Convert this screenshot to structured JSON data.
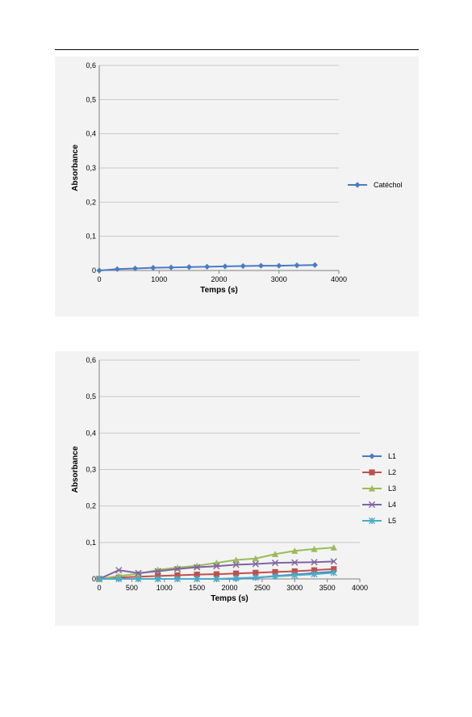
{
  "colors": {
    "L1": "#4a7bc4",
    "L2": "#c0504d",
    "L3": "#9bbb59",
    "L4": "#8064a2",
    "L5": "#4bacc6",
    "catechol": "#4a7bc4",
    "grid": "#c8c8c8",
    "axis": "#808080"
  },
  "chart_data": [
    {
      "type": "line",
      "title": "",
      "xlabel": "Temps (s)",
      "ylabel": "Absorbance",
      "xlim": [
        0,
        4000
      ],
      "ylim": [
        0,
        0.6
      ],
      "xticks": [
        0,
        1000,
        2000,
        3000,
        4000
      ],
      "xtick_labels": [
        "0",
        "1000",
        "2000",
        "3000",
        "4000"
      ],
      "yticks": [
        0,
        0.1,
        0.2,
        0.3,
        0.4,
        0.5,
        0.6
      ],
      "ytick_labels": [
        "0",
        "0,1",
        "0,2",
        "0,3",
        "0,4",
        "0,5",
        "0,6"
      ],
      "grid": true,
      "legend_position": "right",
      "x": [
        0,
        300,
        600,
        900,
        1200,
        1500,
        1800,
        2100,
        2400,
        2700,
        3000,
        3300,
        3600
      ],
      "series": [
        {
          "name": "Catéchol",
          "marker": "diamond",
          "color": "#4a7bc4",
          "values": [
            0.0,
            0.004,
            0.006,
            0.008,
            0.009,
            0.01,
            0.011,
            0.012,
            0.013,
            0.014,
            0.014,
            0.015,
            0.016
          ]
        }
      ]
    },
    {
      "type": "line",
      "title": "",
      "xlabel": "Temps (s)",
      "ylabel": "Absorbance",
      "xlim": [
        0,
        4000
      ],
      "ylim": [
        0,
        0.6
      ],
      "xticks": [
        0,
        500,
        1000,
        1500,
        2000,
        2500,
        3000,
        3500,
        4000
      ],
      "xtick_labels": [
        "0",
        "500",
        "1000",
        "1500",
        "2000",
        "2500",
        "3000",
        "3500",
        "4000"
      ],
      "yticks": [
        0,
        0.1,
        0.2,
        0.3,
        0.4,
        0.5,
        0.6
      ],
      "ytick_labels": [
        "0",
        "0,1",
        "0,2",
        "0,3",
        "0,4",
        "0,5",
        "0,6"
      ],
      "grid": true,
      "legend_position": "right",
      "x": [
        0,
        300,
        600,
        900,
        1200,
        1500,
        1800,
        2100,
        2400,
        2700,
        3000,
        3300,
        3600
      ],
      "series": [
        {
          "name": "L1",
          "marker": "diamond",
          "color": "#4a7bc4",
          "values": [
            0.0,
            0.0,
            0.0,
            0.0,
            0.0,
            0.0,
            0.0,
            0.0,
            0.003,
            0.008,
            0.012,
            0.016,
            0.02
          ]
        },
        {
          "name": "L2",
          "marker": "square",
          "color": "#c0504d",
          "values": [
            0.0,
            0.004,
            0.006,
            0.008,
            0.01,
            0.012,
            0.013,
            0.015,
            0.017,
            0.019,
            0.021,
            0.024,
            0.027
          ]
        },
        {
          "name": "L3",
          "marker": "triangle",
          "color": "#9bbb59",
          "values": [
            0.0,
            0.008,
            0.014,
            0.025,
            0.031,
            0.036,
            0.044,
            0.052,
            0.056,
            0.068,
            0.077,
            0.082,
            0.086
          ]
        },
        {
          "name": "L4",
          "marker": "x",
          "color": "#8064a2",
          "values": [
            0.0,
            0.024,
            0.016,
            0.021,
            0.027,
            0.032,
            0.035,
            0.039,
            0.041,
            0.044,
            0.045,
            0.046,
            0.048
          ]
        },
        {
          "name": "L5",
          "marker": "star",
          "color": "#4bacc6",
          "values": [
            0.0,
            0.0,
            0.0,
            0.0,
            0.0,
            0.0,
            0.0,
            0.002,
            0.004,
            0.007,
            0.01,
            0.013,
            0.017
          ]
        }
      ]
    }
  ]
}
